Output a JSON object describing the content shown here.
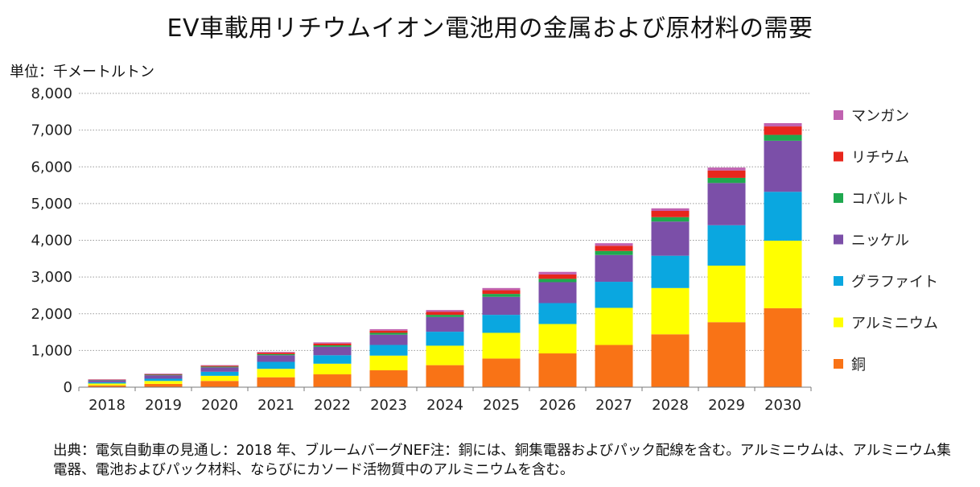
{
  "title": "EV車載用リチウムイオン電池用の金属および原材料の需要",
  "unit_label": "単位：千メートルトン",
  "source_note": "出典：電気自動車の見通し：2018 年、ブルームバーグNEF注：銅には、銅集電器およびパック配線を含む。アルミニウムは、アルミニウム集電器、電池およびパック材料、ならびにカソード活物質中のアルミニウムを含む。",
  "chart_data": {
    "type": "bar",
    "stacked": true,
    "categories": [
      "2018",
      "2019",
      "2020",
      "2021",
      "2022",
      "2023",
      "2024",
      "2025",
      "2026",
      "2027",
      "2028",
      "2029",
      "2030"
    ],
    "ylim": [
      0,
      8000
    ],
    "yticks": [
      0,
      1000,
      2000,
      3000,
      4000,
      5000,
      6000,
      7000,
      8000
    ],
    "ytick_labels": [
      "0",
      "1,000",
      "2,000",
      "3,000",
      "4,000",
      "5,000",
      "6,000",
      "7,000",
      "8,000"
    ],
    "grid": "horizontal dotted",
    "legend_position": "right",
    "series": [
      {
        "name": "銅",
        "color": "#f97316",
        "values": [
          50,
          90,
          170,
          270,
          350,
          460,
          600,
          780,
          920,
          1150,
          1440,
          1770,
          2150
        ]
      },
      {
        "name": "アルミニウム",
        "color": "#ffff00",
        "values": [
          50,
          80,
          140,
          230,
          290,
          400,
          530,
          700,
          800,
          1010,
          1260,
          1540,
          1840
        ]
      },
      {
        "name": "グラファイト",
        "color": "#0aa7e0",
        "values": [
          35,
          60,
          110,
          190,
          230,
          290,
          380,
          490,
          570,
          710,
          880,
          1100,
          1330
        ]
      },
      {
        "name": "ニッケル",
        "color": "#7b4fa8",
        "values": [
          50,
          95,
          120,
          180,
          230,
          280,
          400,
          490,
          570,
          730,
          930,
          1150,
          1390
        ]
      },
      {
        "name": "コバルト",
        "color": "#1fa84f",
        "values": [
          10,
          15,
          20,
          30,
          40,
          50,
          60,
          80,
          90,
          110,
          120,
          140,
          160
        ]
      },
      {
        "name": "リチウム",
        "color": "#e8261c",
        "values": [
          10,
          15,
          25,
          40,
          50,
          60,
          80,
          100,
          120,
          140,
          170,
          200,
          230
        ]
      },
      {
        "name": "マンガン",
        "color": "#c062b0",
        "values": [
          10,
          15,
          15,
          20,
          30,
          40,
          50,
          60,
          70,
          70,
          70,
          80,
          90
        ]
      }
    ],
    "legend_order": [
      "マンガン",
      "リチウム",
      "コバルト",
      "ニッケル",
      "グラファイト",
      "アルミニウム",
      "銅"
    ]
  }
}
